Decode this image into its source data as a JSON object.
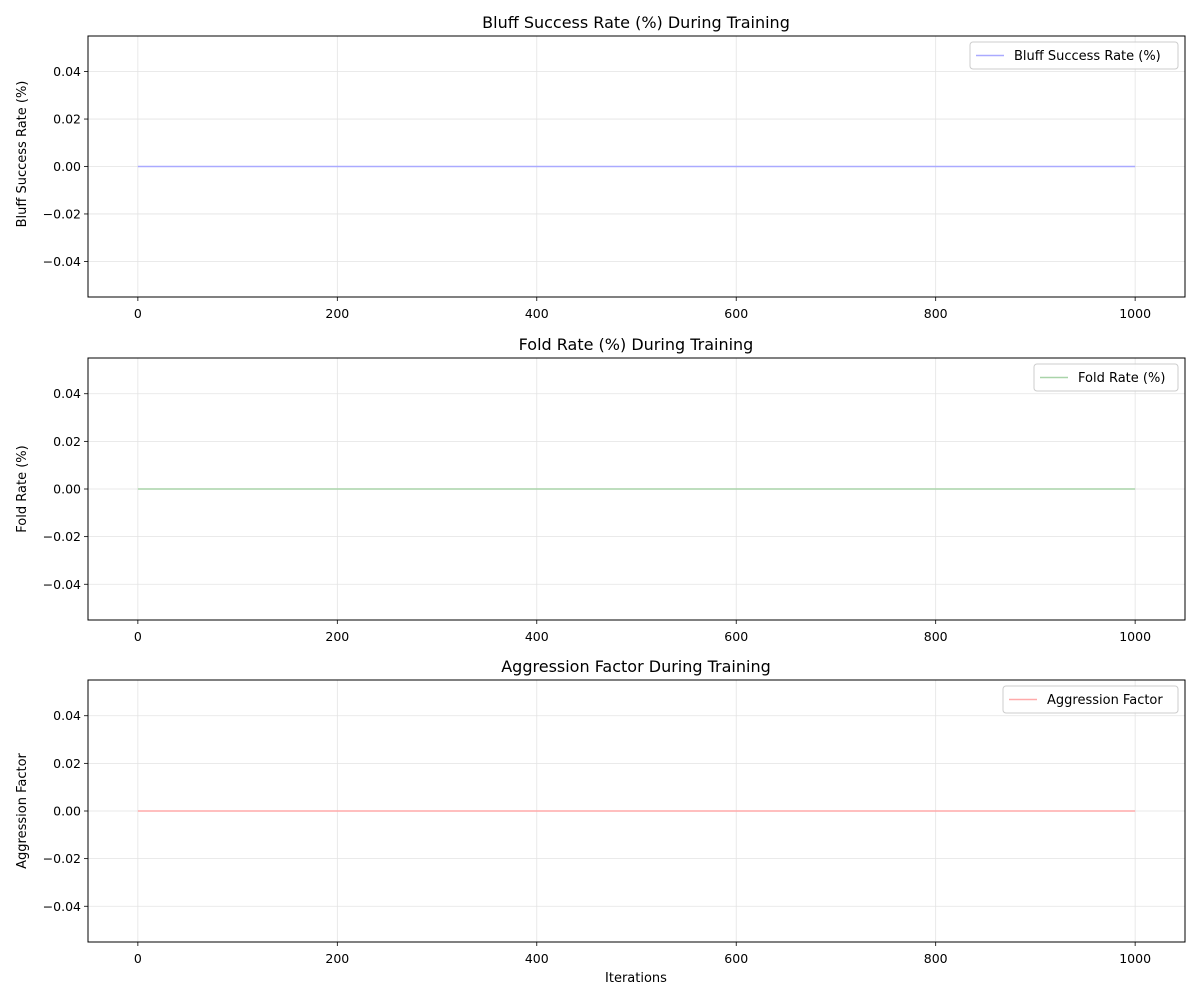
{
  "chart_data": [
    {
      "type": "line",
      "title": "Bluff Success Rate (%) During Training",
      "xlabel": "",
      "ylabel": "Bluff Success Rate (%)",
      "xlim": [
        -50,
        1050
      ],
      "ylim": [
        -0.055,
        0.055
      ],
      "xticks": [
        0,
        200,
        400,
        600,
        800,
        1000
      ],
      "yticks": [
        -0.04,
        -0.02,
        0.0,
        0.02,
        0.04
      ],
      "xtick_labels": [
        "0",
        "200",
        "400",
        "600",
        "800",
        "1000"
      ],
      "ytick_labels": [
        "−0.04",
        "−0.02",
        "0.00",
        "0.02",
        "0.04"
      ],
      "grid": true,
      "legend_position": "top-right",
      "series": [
        {
          "name": "Bluff Success Rate (%)",
          "color": "#aaaaff",
          "x": [
            0,
            1000
          ],
          "y": [
            0,
            0
          ]
        }
      ]
    },
    {
      "type": "line",
      "title": "Fold Rate (%) During Training",
      "xlabel": "",
      "ylabel": "Fold Rate (%)",
      "xlim": [
        -50,
        1050
      ],
      "ylim": [
        -0.055,
        0.055
      ],
      "xticks": [
        0,
        200,
        400,
        600,
        800,
        1000
      ],
      "yticks": [
        -0.04,
        -0.02,
        0.0,
        0.02,
        0.04
      ],
      "xtick_labels": [
        "0",
        "200",
        "400",
        "600",
        "800",
        "1000"
      ],
      "ytick_labels": [
        "−0.04",
        "−0.02",
        "0.00",
        "0.02",
        "0.04"
      ],
      "grid": true,
      "legend_position": "top-right",
      "series": [
        {
          "name": "Fold Rate (%)",
          "color": "#a9d4a9",
          "x": [
            0,
            1000
          ],
          "y": [
            0,
            0
          ]
        }
      ]
    },
    {
      "type": "line",
      "title": "Aggression Factor During Training",
      "xlabel": "Iterations",
      "ylabel": "Aggression Factor",
      "xlim": [
        -50,
        1050
      ],
      "ylim": [
        -0.055,
        0.055
      ],
      "xticks": [
        0,
        200,
        400,
        600,
        800,
        1000
      ],
      "yticks": [
        -0.04,
        -0.02,
        0.0,
        0.02,
        0.04
      ],
      "xtick_labels": [
        "0",
        "200",
        "400",
        "600",
        "800",
        "1000"
      ],
      "ytick_labels": [
        "−0.04",
        "−0.02",
        "0.00",
        "0.02",
        "0.04"
      ],
      "grid": true,
      "legend_position": "top-right",
      "series": [
        {
          "name": "Aggression Factor",
          "color": "#ffaaaa",
          "x": [
            0,
            1000
          ],
          "y": [
            0,
            0
          ]
        }
      ]
    }
  ]
}
